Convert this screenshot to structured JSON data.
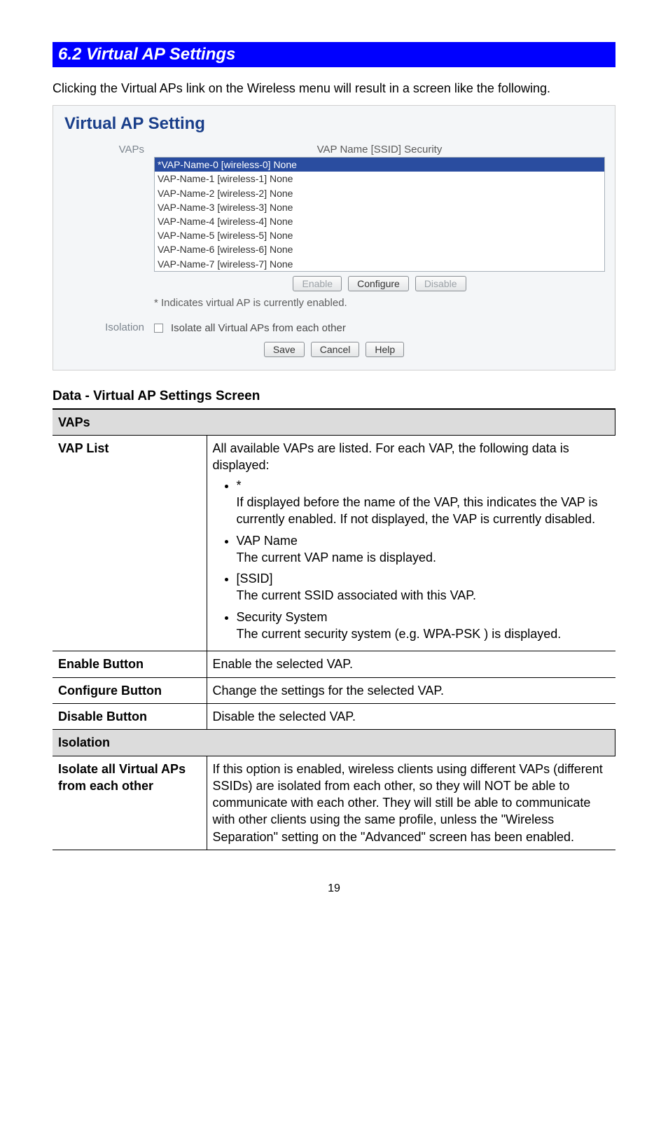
{
  "section": {
    "number_title": "6.2 Virtual AP Settings",
    "intro": "Clicking the Virtual APs link on the Wireless menu will result in a screen like the following."
  },
  "screenshot": {
    "panel_title": "Virtual AP Setting",
    "vaps_label": "VAPs",
    "list_header": "VAP Name [SSID] Security",
    "items": [
      "*VAP-Name-0 [wireless-0] None",
      "VAP-Name-1 [wireless-1] None",
      "VAP-Name-2 [wireless-2] None",
      "VAP-Name-3 [wireless-3] None",
      "VAP-Name-4 [wireless-4] None",
      "VAP-Name-5 [wireless-5] None",
      "VAP-Name-6 [wireless-6] None",
      "VAP-Name-7 [wireless-7] None"
    ],
    "buttons": {
      "enable": "Enable",
      "configure": "Configure",
      "disable": "Disable"
    },
    "footnote": "* Indicates virtual AP is currently enabled.",
    "isolation_label": "Isolation",
    "isolation_checkbox_label": "Isolate all Virtual APs from each other",
    "bottom_buttons": {
      "save": "Save",
      "cancel": "Cancel",
      "help": "Help"
    }
  },
  "data_section": {
    "heading": "Data - Virtual AP Settings Screen",
    "groups": {
      "vaps_header": "VAPs",
      "isolation_header": "Isolation"
    },
    "rows": {
      "vap_list": {
        "label": "VAP List",
        "lead": "All available VAPs are listed. For each VAP, the following data is displayed:",
        "bullets": [
          {
            "title": "*",
            "body": "If displayed before the name of the VAP, this indicates the VAP is currently enabled. If not displayed, the VAP is currently disabled."
          },
          {
            "title": "VAP Name",
            "body": "The current VAP name is displayed."
          },
          {
            "title": "[SSID]",
            "body": "The current SSID associated with this VAP."
          },
          {
            "title": "Security System",
            "body": "The current security system (e.g. WPA-PSK ) is displayed."
          }
        ]
      },
      "enable_button": {
        "label": "Enable Button",
        "desc": "Enable the selected VAP."
      },
      "configure_button": {
        "label": "Configure Button",
        "desc": "Change the settings for the selected VAP."
      },
      "disable_button": {
        "label": "Disable Button",
        "desc": "Disable the selected VAP."
      },
      "isolate_all": {
        "label": "Isolate all Virtual APs from each other",
        "desc": "If this option is enabled, wireless clients using different VAPs (different SSIDs) are isolated from each other, so they will NOT be able to communicate with each other. They will still be able to communicate with other clients using the same profile, unless the \"Wireless Separation\" setting on the \"Advanced\" screen has been enabled."
      }
    }
  },
  "page_number": "19"
}
